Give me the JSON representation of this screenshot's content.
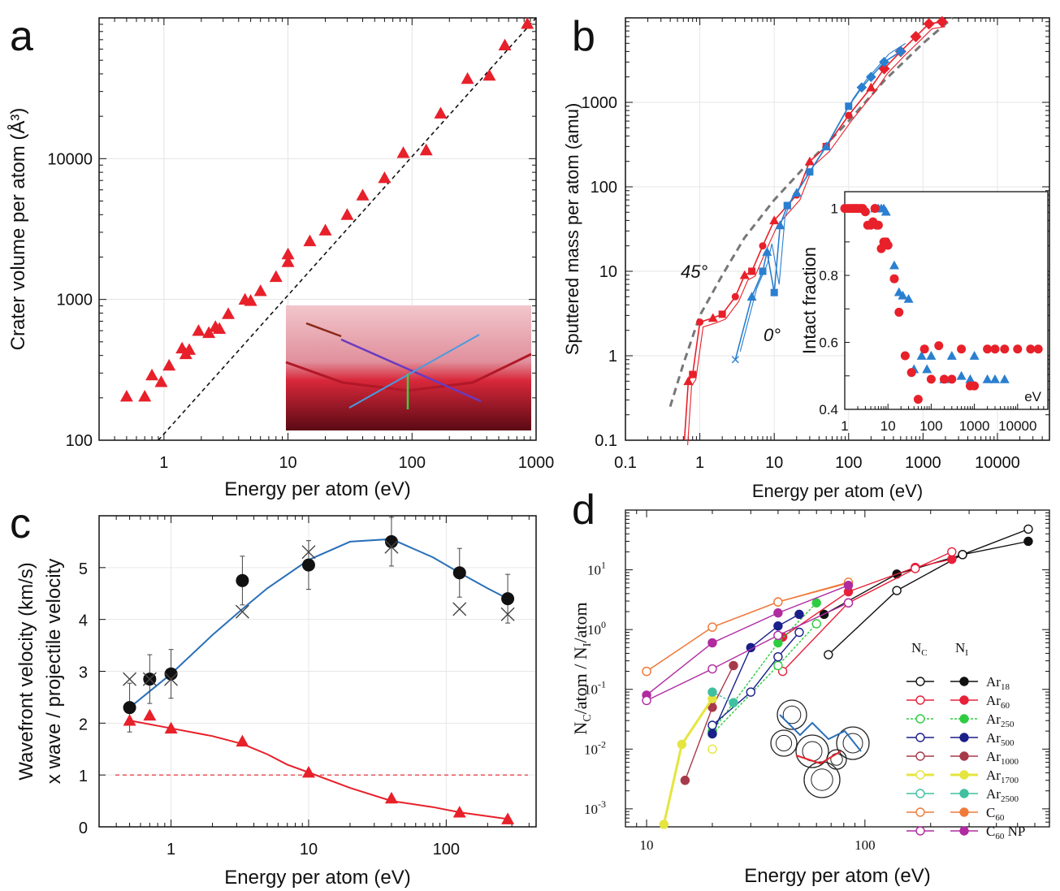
{
  "colors": {
    "red": "#e8202a",
    "blue": "#2a7fd0",
    "grey": "#666666",
    "darkblue": "#1f5fa8"
  },
  "chart_data": [
    {
      "panel": "a",
      "type": "scatter",
      "xlabel": "Energy per atom (eV)",
      "ylabel": "Crater volume per atom (Å³)",
      "xscale": "log",
      "yscale": "log",
      "xlim": [
        0.3,
        1000
      ],
      "ylim": [
        100,
        100000
      ],
      "xticks": [
        "1",
        "10",
        "100",
        "1000"
      ],
      "yticks": [
        "100",
        "1000",
        "10000"
      ],
      "grid": true,
      "series": [
        {
          "marker": "triangle",
          "color": "#e8202a",
          "x": [
            0.5,
            0.7,
            0.8,
            0.95,
            1.1,
            1.4,
            1.5,
            1.6,
            1.9,
            2.3,
            2.6,
            2.8,
            3.3,
            4.5,
            5,
            6,
            8,
            10,
            10,
            15,
            20,
            30,
            40,
            60,
            85,
            130,
            170,
            280,
            420,
            560,
            850
          ],
          "y": [
            205,
            205,
            290,
            260,
            340,
            450,
            410,
            440,
            600,
            580,
            640,
            620,
            790,
            1000,
            980,
            1150,
            1450,
            1850,
            2100,
            2600,
            3100,
            4000,
            5500,
            7300,
            11000,
            11500,
            21000,
            37000,
            39000,
            64000,
            91000
          ]
        },
        {
          "name": "",
          "type": "line",
          "style": "dashed",
          "color": "#111111",
          "x": [
            0.9,
            1000
          ],
          "y": [
            100,
            120000
          ]
        }
      ]
    },
    {
      "panel": "b",
      "type": "line",
      "xlabel": "Energy per atom (eV)",
      "ylabel": "Sputtered mass per atom (amu)",
      "xscale": "log",
      "yscale": "log",
      "xlim": [
        0.1,
        50000
      ],
      "ylim": [
        0.1,
        10000
      ],
      "xticks": [
        "0.1",
        "1",
        "10",
        "100",
        "1000",
        "10000"
      ],
      "yticks": [
        "0.1",
        "1",
        "10",
        "100",
        "1000"
      ],
      "annotations": [
        "45°",
        "0°"
      ],
      "series": [
        {
          "name": "",
          "color": "#e8202a",
          "x": [
            0.7,
            0.8,
            1,
            1.5,
            2,
            3,
            4,
            5,
            7,
            10,
            15,
            20,
            30,
            50,
            100,
            200,
            300,
            500,
            800,
            1200,
            1800
          ],
          "y": [
            0.5,
            0.6,
            2.5,
            2.8,
            3.1,
            5,
            9,
            10,
            20,
            40,
            60,
            80,
            200,
            300,
            700,
            1500,
            2500,
            4000,
            6000,
            8500,
            9000
          ]
        },
        {
          "name": "",
          "color": "#2a7fd0",
          "x": [
            3,
            5,
            7,
            8,
            10,
            12,
            15,
            20,
            30,
            50,
            100,
            150,
            200,
            300,
            500
          ],
          "y": [
            0.9,
            5,
            10,
            17,
            5.6,
            35,
            60,
            85,
            150,
            300,
            900,
            1500,
            2000,
            3000,
            4000
          ]
        },
        {
          "name": "",
          "style": "dashed",
          "color": "#777777",
          "x": [
            0.4,
            0.6,
            1,
            2,
            4,
            10,
            30,
            100,
            300,
            1000,
            2500
          ],
          "y": [
            0.25,
            0.8,
            3,
            9,
            25,
            70,
            200,
            600,
            1800,
            5000,
            12000
          ]
        }
      ],
      "inset": {
        "ylabel": "Intact fraction",
        "xscale": "log",
        "xlim": [
          1,
          50000
        ],
        "ylim": [
          0.4,
          1.05
        ],
        "xticks": [
          "1",
          "10",
          "100",
          "1000",
          "10000"
        ],
        "xunit": "eV",
        "yticks": [
          "0.4",
          "0.6",
          "0.8",
          "1"
        ],
        "series": [
          {
            "marker": "circle",
            "color": "#e8202a",
            "x": [
              1,
              1.2,
              1.4,
              1.6,
              1.8,
              2,
              2.3,
              2.6,
              3,
              3.4,
              4,
              4.5,
              5,
              5.5,
              6,
              7,
              8,
              9,
              10,
              14,
              18,
              25,
              35,
              50,
              70,
              100,
              150,
              200,
              300,
              500,
              800,
              1000,
              2000,
              3000,
              5000,
              10000,
              20000,
              30000
            ],
            "y": [
              1,
              1,
              1,
              1,
              1,
              1,
              1,
              1,
              0.99,
              0.95,
              0.95,
              0.96,
              1,
              0.95,
              0.95,
              0.88,
              0.9,
              0.9,
              0.89,
              0.79,
              0.69,
              0.56,
              0.51,
              0.43,
              0.58,
              0.49,
              0.59,
              0.49,
              0.49,
              0.58,
              0.47,
              0.47,
              0.58,
              0.58,
              0.58,
              0.58,
              0.58,
              0.58
            ]
          },
          {
            "marker": "triangle",
            "color": "#2a7fd0",
            "x": [
              5,
              6,
              7,
              8,
              9,
              10,
              14,
              18,
              22,
              30,
              40,
              60,
              80,
              100,
              200,
              300,
              500,
              800,
              1000,
              2000,
              3000,
              5000
            ],
            "y": [
              1,
              1,
              1,
              1,
              0.99,
              0.9,
              0.83,
              0.75,
              0.74,
              0.73,
              0.52,
              0.56,
              0.52,
              0.56,
              0.49,
              0.56,
              0.5,
              0.49,
              0.56,
              0.49,
              0.49,
              0.49
            ]
          }
        ]
      }
    },
    {
      "panel": "c",
      "type": "scatter",
      "xlabel": "Energy per atom (eV)",
      "ylabel_parts": [
        "Wavefront velocity (km/s)",
        "x wave / projectile velocity"
      ],
      "xscale": "log",
      "xlim": [
        0.3,
        450
      ],
      "ylim": [
        0,
        6
      ],
      "xticks": [
        "1",
        "10",
        "100"
      ],
      "yticks": [
        "0",
        "1",
        "2",
        "3",
        "4",
        "5"
      ],
      "reference_line": {
        "y": 1,
        "style": "dashed",
        "color": "#e8202a"
      },
      "series": [
        {
          "marker": "circle",
          "color": "#111111",
          "x": [
            0.5,
            0.7,
            1,
            3.3,
            10,
            40,
            125,
            280
          ],
          "y": [
            2.3,
            2.85,
            2.95,
            4.75,
            5.05,
            5.5,
            4.9,
            4.4
          ]
        },
        {
          "marker": "x",
          "color": "#444444",
          "x": [
            0.5,
            0.7,
            1,
            3.3,
            10,
            40,
            125,
            280
          ],
          "y": [
            2.85,
            2.85,
            2.85,
            4.15,
            5.3,
            5.4,
            4.2,
            4.1
          ]
        },
        {
          "type": "line",
          "color": "#2a6fb8",
          "x": [
            0.5,
            1,
            2,
            3.3,
            5,
            10,
            20,
            40,
            80,
            125,
            200,
            280
          ],
          "y": [
            2.3,
            2.95,
            3.7,
            4.2,
            4.6,
            5.15,
            5.5,
            5.55,
            5.2,
            4.9,
            4.6,
            4.4
          ]
        },
        {
          "marker": "triangle",
          "color": "#e8202a",
          "x": [
            0.5,
            0.7,
            1,
            3.3,
            10,
            40,
            125,
            280
          ],
          "y": [
            2.05,
            2.15,
            1.9,
            1.65,
            1.05,
            0.55,
            0.28,
            0.15
          ]
        },
        {
          "type": "line",
          "color": "#e8202a",
          "x": [
            0.5,
            1,
            2,
            3.3,
            5,
            7,
            10,
            20,
            40,
            80,
            125,
            280
          ],
          "y": [
            2.05,
            1.9,
            1.75,
            1.6,
            1.4,
            1.2,
            1.05,
            0.75,
            0.5,
            0.38,
            0.28,
            0.15
          ]
        }
      ]
    },
    {
      "panel": "d",
      "type": "line",
      "xlabel": "Energy per atom (eV)",
      "ylabel": "NC/atom / NI/atom",
      "xscale": "log",
      "yscale": "log",
      "xlim": [
        8,
        700
      ],
      "ylim": [
        0.0005,
        100
      ],
      "xticks": [
        "10",
        "100"
      ],
      "yticks": [
        "10^-3",
        "10^-2",
        "10^-1",
        "10^0",
        "10^1"
      ],
      "legend": {
        "headers": [
          "N",
          "N"
        ],
        "header_subs": [
          "C",
          "I"
        ],
        "entries": [
          {
            "label": "Ar",
            "sub": "18",
            "color": "#111111"
          },
          {
            "label": "Ar",
            "sub": "60",
            "color": "#e8203a"
          },
          {
            "label": "Ar",
            "sub": "250",
            "color": "#2ecc40",
            "dashed": true
          },
          {
            "label": "Ar",
            "sub": "500",
            "color": "#1a1f8a"
          },
          {
            "label": "Ar",
            "sub": "1000",
            "color": "#a63a4a"
          },
          {
            "label": "Ar",
            "sub": "1700",
            "color": "#e5e540"
          },
          {
            "label": "Ar",
            "sub": "2500",
            "color": "#40c0a0"
          },
          {
            "label": "C",
            "sub": "60",
            "color": "#f07a3a"
          },
          {
            "label": "C",
            "sub": "60",
            "suffix": " NP",
            "color": "#b02aa0"
          }
        ]
      },
      "series": [
        {
          "name": "Ar18 NI",
          "color": "#111111",
          "fill": true,
          "x": [
            65,
            140,
            280,
            560
          ],
          "y": [
            1.8,
            8.5,
            18,
            30
          ]
        },
        {
          "name": "Ar18 NC",
          "color": "#111111",
          "fill": false,
          "x": [
            68,
            140,
            280,
            560
          ],
          "y": [
            0.38,
            4.5,
            18,
            48
          ]
        },
        {
          "name": "Ar60 NI",
          "color": "#e8203a",
          "fill": true,
          "x": [
            42,
            84,
            170,
            250
          ],
          "y": [
            0.75,
            4.3,
            11,
            15
          ]
        },
        {
          "name": "Ar60 NC",
          "color": "#e8203a",
          "fill": false,
          "x": [
            42,
            84,
            170,
            250
          ],
          "y": [
            0.2,
            2.8,
            10.5,
            20
          ]
        },
        {
          "name": "Ar250 NI",
          "color": "#2ecc40",
          "fill": true,
          "x": [
            20,
            40,
            60
          ],
          "y": [
            0.02,
            0.6,
            2.8
          ]
        },
        {
          "name": "Ar250 NC",
          "color": "#2ecc40",
          "fill": false,
          "x": [
            20,
            40,
            60
          ],
          "y": [
            0.018,
            0.25,
            1.25
          ]
        },
        {
          "name": "Ar500 NI",
          "color": "#1a1f8a",
          "fill": true,
          "x": [
            20,
            30,
            40,
            50
          ],
          "y": [
            0.018,
            0.5,
            1.15,
            1.8
          ]
        },
        {
          "name": "Ar500 NC",
          "color": "#1a1f8a",
          "fill": false,
          "x": [
            20,
            30,
            40,
            50
          ],
          "y": [
            0.025,
            0.09,
            0.35,
            0.9
          ]
        },
        {
          "name": "Ar1000 NI",
          "color": "#a63a4a",
          "fill": true,
          "x": [
            15,
            20,
            25
          ],
          "y": [
            0.003,
            0.05,
            0.25
          ]
        },
        {
          "name": "Ar1700 NI",
          "color": "#e5e540",
          "fill": true,
          "x": [
            12,
            14.5,
            20
          ],
          "y": [
            0.00055,
            0.012,
            0.07
          ]
        },
        {
          "name": "Ar1700 NC",
          "color": "#e5e540",
          "fill": false,
          "x": [
            20
          ],
          "y": [
            0.01
          ]
        },
        {
          "name": "Ar2500 NI",
          "color": "#40c0a0",
          "fill": true,
          "x": [
            20,
            25
          ],
          "y": [
            0.09,
            0.06
          ]
        },
        {
          "name": "C60 NI",
          "color": "#f07a3a",
          "fill": true,
          "x": [
            10,
            20,
            40,
            84
          ],
          "y": [
            0.2,
            1.1,
            2.9,
            6
          ]
        },
        {
          "name": "C60 NC",
          "color": "#f07a3a",
          "fill": false,
          "x": [
            10,
            20,
            40,
            84
          ],
          "y": [
            0.2,
            1.1,
            2.9,
            6.2
          ]
        },
        {
          "name": "C60NP NI",
          "color": "#b02aa0",
          "fill": true,
          "x": [
            10,
            20,
            40,
            84
          ],
          "y": [
            0.08,
            0.6,
            1.9,
            5.5
          ]
        },
        {
          "name": "C60NP NC",
          "color": "#b02aa0",
          "fill": false,
          "x": [
            10,
            20,
            40,
            84
          ],
          "y": [
            0.065,
            0.22,
            0.8,
            2.8
          ]
        }
      ]
    }
  ],
  "panel_labels": [
    "a",
    "b",
    "c",
    "d"
  ]
}
